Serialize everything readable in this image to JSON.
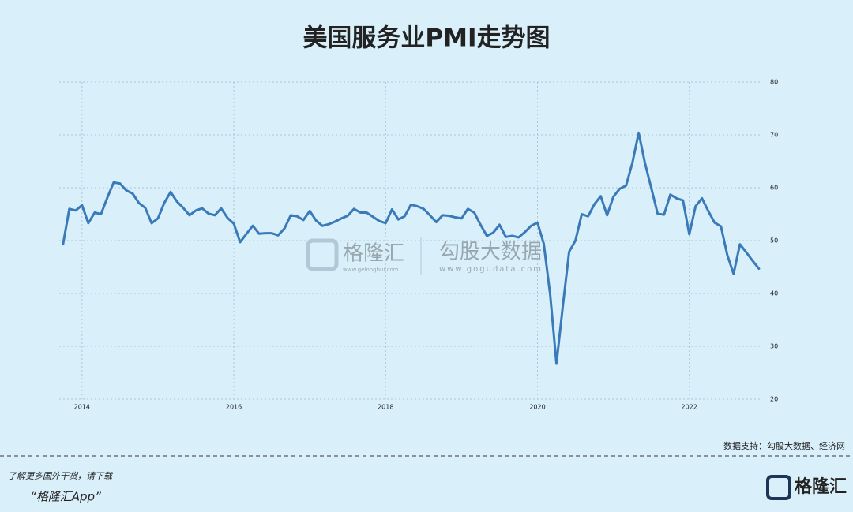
{
  "chart_data": {
    "type": "line",
    "title": "美国服务业PMI走势图",
    "x": [
      2013.75,
      2013.833,
      2013.917,
      2014,
      2014.083,
      2014.167,
      2014.25,
      2014.333,
      2014.417,
      2014.5,
      2014.583,
      2014.667,
      2014.75,
      2014.833,
      2014.917,
      2015,
      2015.083,
      2015.167,
      2015.25,
      2015.333,
      2015.417,
      2015.5,
      2015.583,
      2015.667,
      2015.75,
      2015.833,
      2015.917,
      2016,
      2016.083,
      2016.167,
      2016.25,
      2016.333,
      2016.417,
      2016.5,
      2016.583,
      2016.667,
      2016.75,
      2016.833,
      2016.917,
      2017,
      2017.083,
      2017.167,
      2017.25,
      2017.333,
      2017.417,
      2017.5,
      2017.583,
      2017.667,
      2017.75,
      2017.833,
      2017.917,
      2018,
      2018.083,
      2018.167,
      2018.25,
      2018.333,
      2018.417,
      2018.5,
      2018.583,
      2018.667,
      2018.75,
      2018.833,
      2018.917,
      2019,
      2019.083,
      2019.167,
      2019.25,
      2019.333,
      2019.417,
      2019.5,
      2019.583,
      2019.667,
      2019.75,
      2019.833,
      2019.917,
      2020,
      2020.083,
      2020.167,
      2020.25,
      2020.333,
      2020.417,
      2020.5,
      2020.583,
      2020.667,
      2020.75,
      2020.833,
      2020.917,
      2021,
      2021.083,
      2021.167,
      2021.25,
      2021.333,
      2021.417,
      2021.5,
      2021.583,
      2021.667,
      2021.75,
      2021.833,
      2021.917,
      2022,
      2022.083,
      2022.167,
      2022.25,
      2022.333,
      2022.417,
      2022.5,
      2022.583,
      2022.667,
      2022.75,
      2022.833,
      2022.917
    ],
    "series": [
      {
        "color": "#3b7ab8",
        "values": [
          49.3,
          56.0,
          55.7,
          56.7,
          53.3,
          55.3,
          55.0,
          58.1,
          61.0,
          60.8,
          59.5,
          58.9,
          57.1,
          56.2,
          53.3,
          54.2,
          57.1,
          59.2,
          57.4,
          56.2,
          54.8,
          55.7,
          56.1,
          55.1,
          54.8,
          56.1,
          54.3,
          53.2,
          49.7,
          51.3,
          52.8,
          51.3,
          51.4,
          51.4,
          51.0,
          52.3,
          54.8,
          54.6,
          53.9,
          55.6,
          53.8,
          52.8,
          53.1,
          53.6,
          54.2,
          54.7,
          56.0,
          55.3,
          55.3,
          54.5,
          53.7,
          53.3,
          55.9,
          54.0,
          54.6,
          56.8,
          56.5,
          56.0,
          54.8,
          53.5,
          54.8,
          54.7,
          54.4,
          54.2,
          56.0,
          55.3,
          53.0,
          50.9,
          51.5,
          53.0,
          50.7,
          50.9,
          50.6,
          51.6,
          52.8,
          53.4,
          49.4,
          39.8,
          26.7,
          37.5,
          47.9,
          50.0,
          55.0,
          54.6,
          56.9,
          58.4,
          54.8,
          58.3,
          59.8,
          60.4,
          64.7,
          70.4,
          64.6,
          59.9,
          55.1,
          54.9,
          58.7,
          58.0,
          57.6,
          51.2,
          56.5,
          58.0,
          55.6,
          53.4,
          52.7,
          47.3,
          43.7,
          49.3,
          47.8,
          46.2,
          44.7
        ]
      }
    ],
    "xlim": [
      2013.7,
      2022.96
    ],
    "xticks": [
      2014,
      2016,
      2018,
      2020,
      2022
    ],
    "ylim": [
      20,
      80
    ],
    "yticks": [
      20,
      30,
      40,
      50,
      60,
      70,
      80
    ],
    "grid": true,
    "source": "数据支持：勾股大数据、经济网"
  },
  "watermark": {
    "brand": "格隆汇",
    "brand_url": "www.gelonghui.com",
    "partner": "勾股大数据",
    "partner_url": "www.gogudata.com"
  },
  "footer": {
    "note": "了解更多国外干货，请下载",
    "app": "“格隆汇App”",
    "logo": "格隆汇"
  }
}
